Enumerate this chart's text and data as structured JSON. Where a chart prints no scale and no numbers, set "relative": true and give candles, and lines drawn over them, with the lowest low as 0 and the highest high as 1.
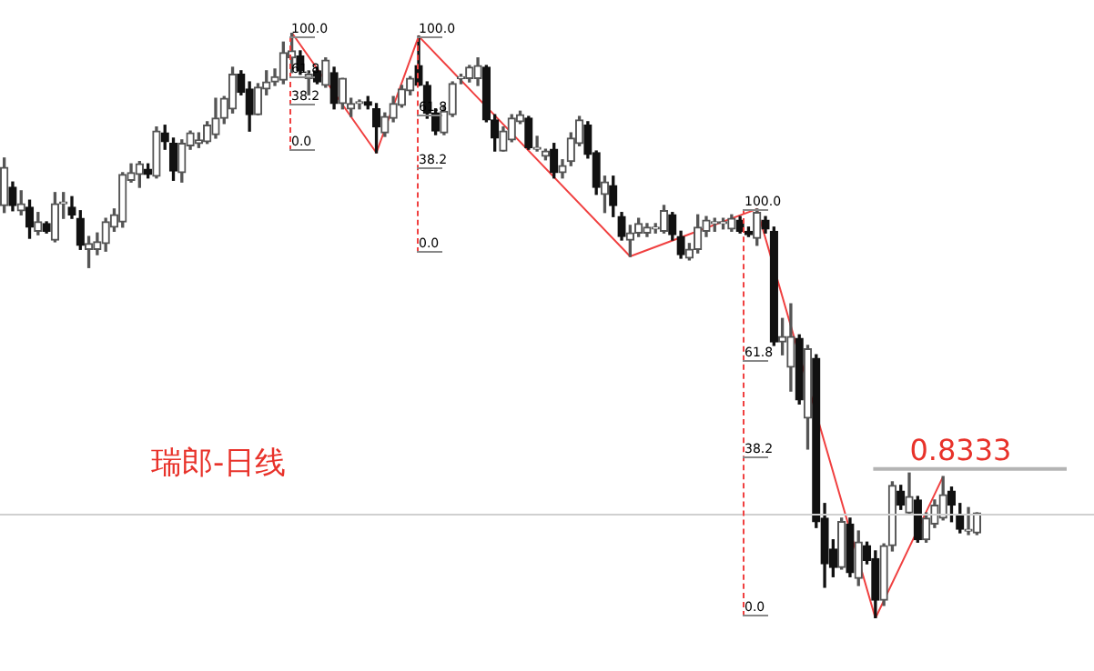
{
  "chart_data": {
    "type": "candlestick",
    "relative": true,
    "title": "瑞郎-日线",
    "categories": [
      null,
      null,
      null,
      null,
      null,
      null,
      null,
      null,
      null,
      null,
      null,
      null,
      null,
      null,
      null,
      null,
      null,
      null,
      null,
      null,
      null,
      null,
      null,
      null,
      null,
      null,
      null,
      null,
      null,
      null,
      null,
      null,
      null,
      null,
      null,
      null,
      null,
      null,
      null,
      null,
      null,
      null,
      null,
      null,
      null,
      null,
      null,
      null,
      null,
      null,
      null,
      null,
      null,
      null,
      null,
      null,
      null,
      null,
      null,
      null,
      null,
      null,
      null,
      null,
      null,
      null,
      null,
      null,
      null,
      null,
      null,
      null,
      null,
      null,
      null,
      null,
      null,
      null,
      null,
      null,
      null,
      null,
      null,
      null,
      null,
      null,
      null,
      null,
      null,
      null,
      null,
      null,
      null,
      null,
      null,
      null,
      null,
      null,
      null,
      null,
      null,
      null,
      null,
      null,
      null,
      null,
      null,
      null,
      null,
      null,
      null,
      null,
      null,
      null,
      null,
      null
    ],
    "ohlc": [
      [
        0.705,
        0.786,
        0.693,
        0.77
      ],
      [
        0.736,
        0.745,
        0.696,
        0.705
      ],
      [
        0.696,
        0.73,
        0.689,
        0.708
      ],
      [
        0.702,
        0.714,
        0.649,
        0.668
      ],
      [
        0.661,
        0.693,
        0.655,
        0.677
      ],
      [
        0.674,
        0.677,
        0.658,
        0.661
      ],
      [
        0.646,
        0.727,
        0.643,
        0.708
      ],
      [
        0.708,
        0.727,
        0.683,
        0.711
      ],
      [
        0.702,
        0.72,
        0.683,
        0.689
      ],
      [
        0.683,
        0.696,
        0.63,
        0.637
      ],
      [
        0.63,
        0.652,
        0.599,
        0.64
      ],
      [
        0.63,
        0.658,
        0.621,
        0.643
      ],
      [
        0.64,
        0.683,
        0.627,
        0.677
      ],
      [
        0.668,
        0.699,
        0.661,
        0.689
      ],
      [
        0.677,
        0.761,
        0.668,
        0.758
      ],
      [
        0.748,
        0.776,
        0.745,
        0.761
      ],
      [
        0.758,
        0.78,
        0.736,
        0.776
      ],
      [
        0.767,
        0.776,
        0.752,
        0.758
      ],
      [
        0.755,
        0.839,
        0.752,
        0.832
      ],
      [
        0.829,
        0.842,
        0.801,
        0.814
      ],
      [
        0.811,
        0.82,
        0.748,
        0.764
      ],
      [
        0.761,
        0.817,
        0.745,
        0.811
      ],
      [
        0.807,
        0.832,
        0.801,
        0.829
      ],
      [
        0.811,
        0.829,
        0.804,
        0.817
      ],
      [
        0.814,
        0.848,
        0.811,
        0.842
      ],
      [
        0.826,
        0.888,
        0.82,
        0.854
      ],
      [
        0.854,
        0.891,
        0.845,
        0.888
      ],
      [
        0.87,
        0.941,
        0.863,
        0.929
      ],
      [
        0.929,
        0.935,
        0.894,
        0.898
      ],
      [
        0.904,
        0.916,
        0.832,
        0.86
      ],
      [
        0.86,
        0.913,
        0.86,
        0.907
      ],
      [
        0.904,
        0.935,
        0.894,
        0.916
      ],
      [
        0.916,
        0.938,
        0.91,
        0.925
      ],
      [
        0.919,
        0.984,
        0.913,
        0.966
      ],
      [
        0.957,
        1.0,
        0.932,
        0.969
      ],
      [
        0.96,
        0.969,
        0.929,
        0.935
      ],
      [
        0.922,
        0.935,
        0.894,
        0.929
      ],
      [
        0.935,
        0.941,
        0.913,
        0.916
      ],
      [
        0.91,
        0.957,
        0.907,
        0.953
      ],
      [
        0.932,
        0.941,
        0.87,
        0.879
      ],
      [
        0.879,
        0.922,
        0.87,
        0.922
      ],
      [
        0.87,
        0.888,
        0.857,
        0.879
      ],
      [
        0.879,
        0.885,
        0.87,
        0.882
      ],
      [
        0.882,
        0.891,
        0.87,
        0.876
      ],
      [
        0.87,
        0.879,
        0.795,
        0.839
      ],
      [
        0.829,
        0.863,
        0.823,
        0.857
      ],
      [
        0.854,
        0.891,
        0.848,
        0.879
      ],
      [
        0.876,
        0.91,
        0.873,
        0.904
      ],
      [
        0.901,
        0.925,
        0.894,
        0.922
      ],
      [
        0.944,
        0.994,
        0.91,
        0.91
      ],
      [
        0.91,
        0.916,
        0.854,
        0.863
      ],
      [
        0.863,
        0.87,
        0.826,
        0.832
      ],
      [
        0.829,
        0.876,
        0.826,
        0.866
      ],
      [
        0.86,
        0.916,
        0.857,
        0.913
      ],
      [
        0.922,
        0.929,
        0.913,
        0.925
      ],
      [
        0.922,
        0.944,
        0.916,
        0.941
      ],
      [
        0.922,
        0.957,
        0.91,
        0.944
      ],
      [
        0.941,
        0.944,
        0.848,
        0.851
      ],
      [
        0.851,
        0.86,
        0.798,
        0.82
      ],
      [
        0.798,
        0.839,
        0.798,
        0.832
      ],
      [
        0.817,
        0.86,
        0.814,
        0.854
      ],
      [
        0.848,
        0.866,
        0.845,
        0.86
      ],
      [
        0.854,
        0.857,
        0.801,
        0.804
      ],
      [
        0.801,
        0.823,
        0.798,
        0.804
      ],
      [
        0.789,
        0.801,
        0.783,
        0.798
      ],
      [
        0.801,
        0.811,
        0.752,
        0.761
      ],
      [
        0.761,
        0.783,
        0.752,
        0.773
      ],
      [
        0.78,
        0.829,
        0.773,
        0.82
      ],
      [
        0.811,
        0.857,
        0.807,
        0.851
      ],
      [
        0.842,
        0.848,
        0.786,
        0.792
      ],
      [
        0.795,
        0.798,
        0.724,
        0.736
      ],
      [
        0.724,
        0.755,
        0.693,
        0.745
      ],
      [
        0.739,
        0.755,
        0.686,
        0.705
      ],
      [
        0.686,
        0.693,
        0.646,
        0.652
      ],
      [
        0.646,
        0.671,
        0.618,
        0.658
      ],
      [
        0.658,
        0.683,
        0.652,
        0.674
      ],
      [
        0.658,
        0.674,
        0.652,
        0.668
      ],
      [
        0.665,
        0.674,
        0.658,
        0.668
      ],
      [
        0.661,
        0.705,
        0.658,
        0.696
      ],
      [
        0.689,
        0.693,
        0.646,
        0.655
      ],
      [
        0.652,
        0.661,
        0.615,
        0.621
      ],
      [
        0.615,
        0.64,
        0.612,
        0.63
      ],
      [
        0.63,
        0.689,
        0.624,
        0.668
      ],
      [
        0.661,
        0.686,
        0.652,
        0.68
      ],
      [
        0.674,
        0.683,
        0.661,
        0.677
      ],
      [
        0.674,
        0.683,
        0.665,
        0.677
      ],
      [
        0.665,
        0.689,
        0.661,
        0.683
      ],
      [
        0.68,
        0.686,
        0.658,
        0.661
      ],
      [
        0.661,
        0.668,
        0.652,
        0.655
      ],
      [
        0.649,
        0.699,
        0.637,
        0.693
      ],
      [
        0.68,
        0.686,
        0.658,
        0.665
      ],
      [
        0.661,
        0.668,
        0.466,
        0.472
      ],
      [
        0.472,
        0.512,
        0.45,
        0.481
      ],
      [
        0.429,
        0.537,
        0.388,
        0.481
      ],
      [
        0.478,
        0.484,
        0.366,
        0.373
      ],
      [
        0.342,
        0.466,
        0.289,
        0.46
      ],
      [
        0.444,
        0.45,
        0.155,
        0.165
      ],
      [
        0.171,
        0.196,
        0.053,
        0.093
      ],
      [
        0.118,
        0.134,
        0.071,
        0.087
      ],
      [
        0.087,
        0.171,
        0.084,
        0.165
      ],
      [
        0.161,
        0.171,
        0.071,
        0.078
      ],
      [
        0.068,
        0.149,
        0.056,
        0.13
      ],
      [
        0.124,
        0.13,
        0.093,
        0.099
      ],
      [
        0.102,
        0.115,
        0.0,
        0.031
      ],
      [
        0.031,
        0.127,
        0.022,
        0.124
      ],
      [
        0.124,
        0.233,
        0.115,
        0.227
      ],
      [
        0.217,
        0.227,
        0.186,
        0.193
      ],
      [
        0.18,
        0.248,
        0.177,
        0.208
      ],
      [
        0.202,
        0.208,
        0.13,
        0.134
      ],
      [
        0.134,
        0.18,
        0.13,
        0.171
      ],
      [
        0.161,
        0.202,
        0.155,
        0.193
      ],
      [
        0.171,
        0.242,
        0.168,
        0.211
      ],
      [
        0.217,
        0.224,
        0.165,
        0.193
      ],
      [
        0.177,
        0.196,
        0.146,
        0.152
      ],
      [
        0.149,
        0.189,
        0.143,
        0.152
      ],
      [
        0.146,
        0.18,
        0.143,
        0.18
      ]
    ],
    "series": [
      {
        "type": "line",
        "color": "#f04040",
        "values": [
          null,
          null,
          null,
          null,
          null,
          null,
          null,
          null,
          null,
          null,
          null,
          null,
          null,
          null,
          null,
          null,
          null,
          null,
          null,
          null,
          null,
          null,
          null,
          null,
          null,
          null,
          null,
          null,
          null,
          null,
          null,
          null,
          null,
          null,
          1.0,
          null,
          null,
          null,
          null,
          null,
          null,
          null,
          null,
          null,
          0.795,
          null,
          null,
          null,
          null,
          0.994,
          null,
          null,
          null,
          null,
          null,
          null,
          null,
          null,
          null,
          null,
          null,
          null,
          null,
          null,
          null,
          null,
          null,
          null,
          null,
          null,
          null,
          null,
          null,
          null,
          0.618,
          null,
          null,
          null,
          null,
          null,
          null,
          null,
          null,
          null,
          null,
          null,
          null,
          null,
          null,
          0.699,
          null,
          null,
          null,
          null,
          null,
          null,
          null,
          null,
          null,
          null,
          null,
          null,
          null,
          0.0,
          null,
          null,
          null,
          null,
          null,
          null,
          null,
          0.242,
          null,
          null,
          null,
          null
        ]
      }
    ],
    "ref_lines": [
      {
        "axis": "y",
        "value": 0.177,
        "color": "#d0d0d0"
      },
      {
        "axis": "y",
        "value": 0.255,
        "color": "#b4b4b4"
      }
    ],
    "annotations": [
      "100.0",
      "61.8",
      "38.2",
      "0.0",
      "100.0",
      "61.8",
      "38.2",
      "0.0",
      "100.0",
      "61.8",
      "38.2",
      "0.0",
      "0.8333"
    ]
  }
}
